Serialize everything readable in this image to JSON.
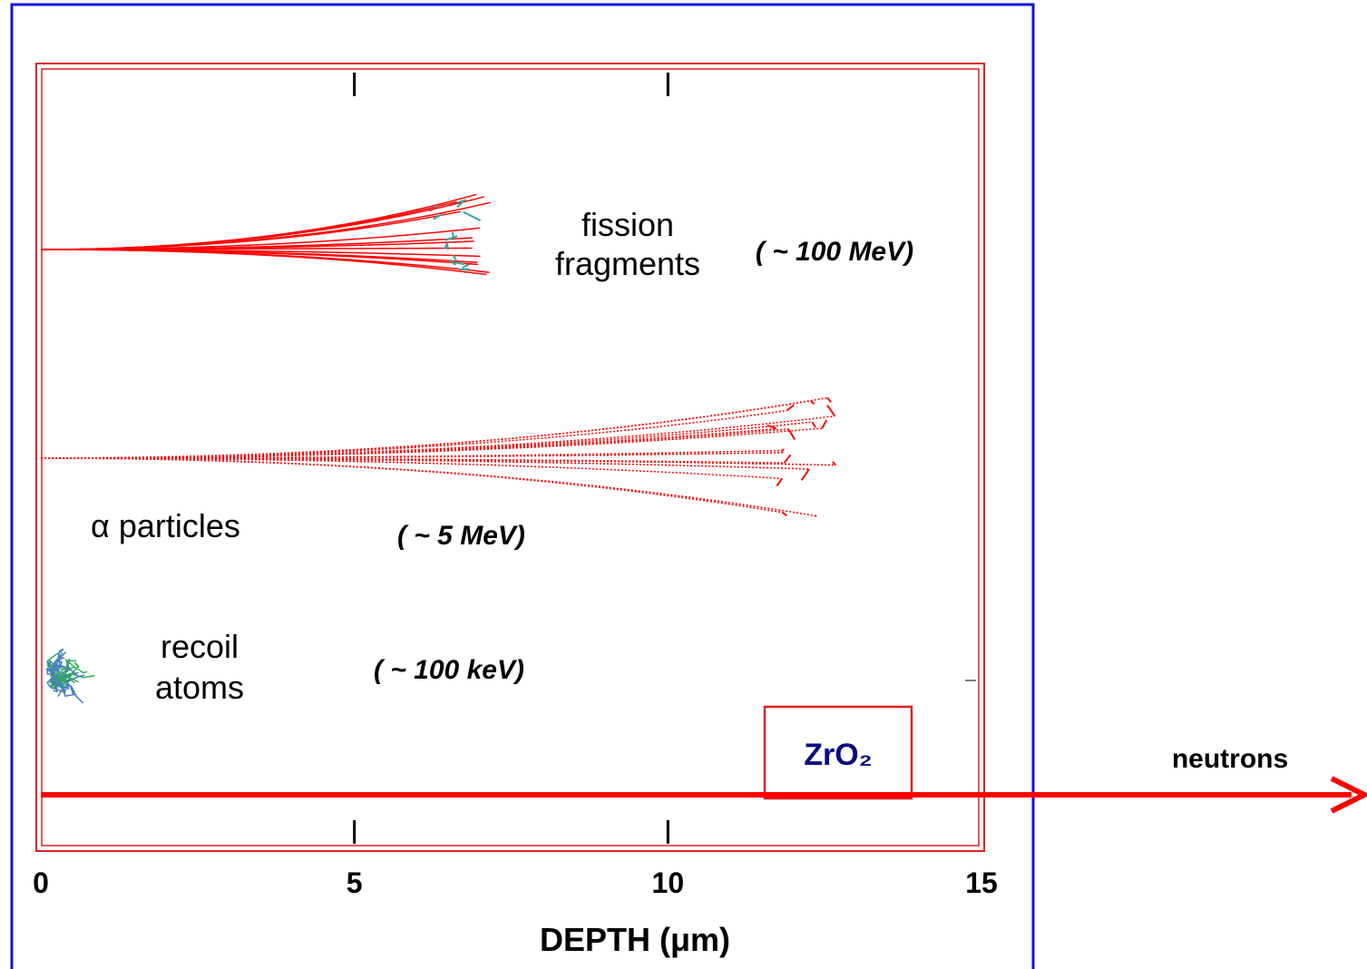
{
  "chart_data": {
    "type": "trajectory",
    "x_label": "DEPTH  (μm)",
    "xlim": [
      0,
      15
    ],
    "xticks": [
      0,
      5,
      10,
      15
    ],
    "groups": [
      {
        "lines": [
          "fission",
          "fragments"
        ],
        "energy": "( ~ 100 MeV)",
        "range": 7.2,
        "color": "#ff0000",
        "accent": "#3aa0a0"
      },
      {
        "lines": [
          "α particles"
        ],
        "energy": "( ~ 5 MeV)",
        "range": 12.7,
        "color": "#ff0000"
      },
      {
        "lines": [
          "recoil",
          "atoms"
        ],
        "energy": "( ~ 100 keV)",
        "range": 1.1,
        "color": "#4a7fc0",
        "accent": "#2db04a"
      }
    ],
    "material": "ZrO₂",
    "beam_label": "neutrons"
  }
}
